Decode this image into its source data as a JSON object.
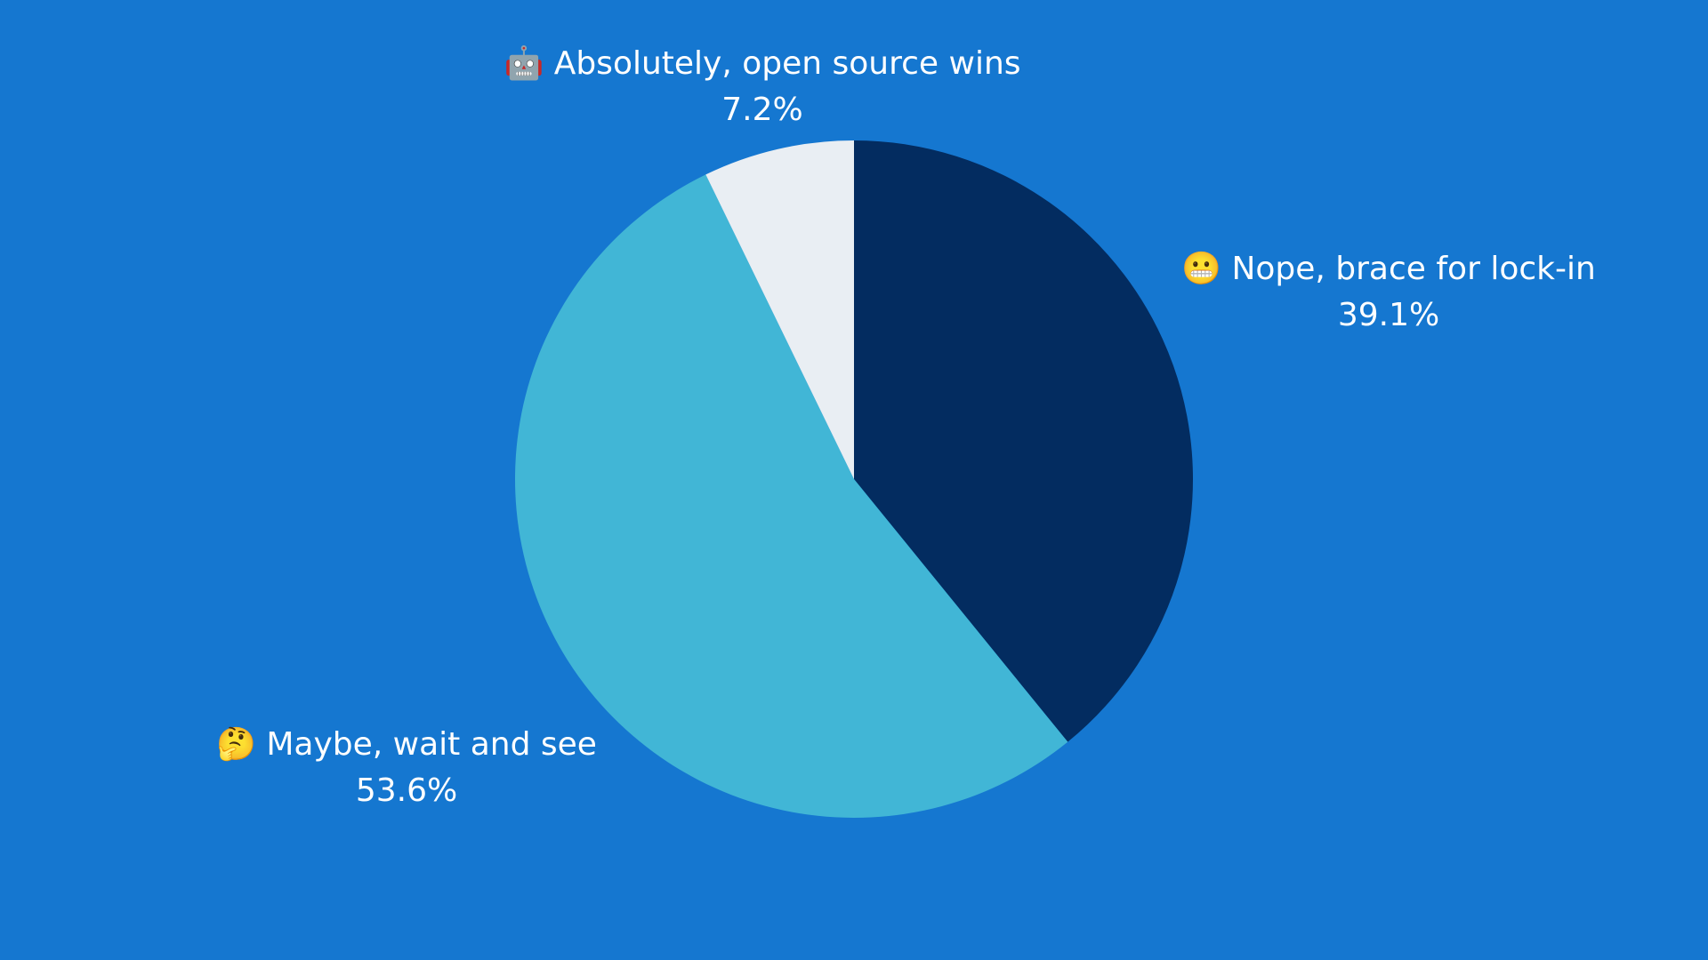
{
  "chart_data": {
    "type": "pie",
    "categories": [
      "😬 Nope, brace for lock-in",
      "🤔 Maybe, wait and see",
      "🤖 Absolutely, open source wins"
    ],
    "values": [
      39.1,
      53.6,
      7.2
    ],
    "value_labels": [
      "39.1%",
      "53.6%",
      "7.2%"
    ],
    "colors": [
      "#032c60",
      "#41b6d6",
      "#e9eef3"
    ]
  }
}
